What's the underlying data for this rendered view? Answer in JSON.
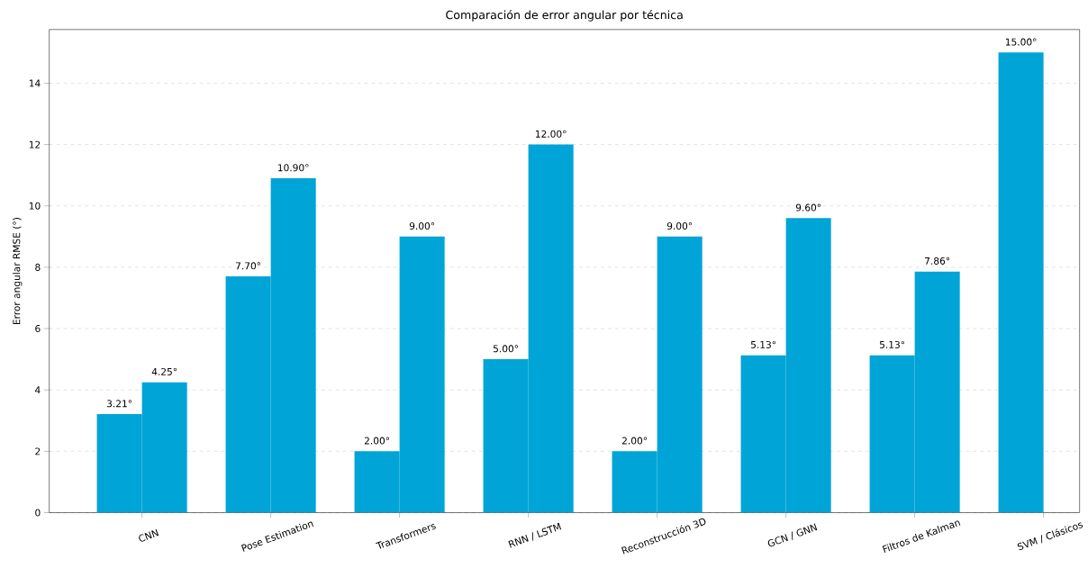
{
  "chart_data": {
    "type": "bar",
    "title": "Comparación de error angular por técnica",
    "ylabel": "Error angular RMSE (°)",
    "categories": [
      "CNN",
      "Pose Estimation",
      "Transformers",
      "RNN / LSTM",
      "Reconstrucción 3D",
      "GCN / GNN",
      "Filtros de Kalman",
      "SVM / Clásicos"
    ],
    "series": [
      {
        "color": "#00a4d6",
        "values": [
          3.21,
          7.7,
          2.0,
          5.0,
          2.0,
          5.13,
          5.13,
          15.0
        ],
        "value_labels": [
          "3.21°",
          "7.70°",
          "2.00°",
          "5.00°",
          "2.00°",
          "5.13°",
          "5.13°",
          "15.00°"
        ]
      },
      {
        "color": "#00a4d6",
        "values": [
          4.25,
          10.9,
          9.0,
          12.0,
          9.0,
          9.6,
          7.86,
          null
        ],
        "value_labels": [
          "4.25°",
          "10.90°",
          "9.00°",
          "12.00°",
          "9.00°",
          "9.60°",
          "7.86°",
          null
        ]
      }
    ],
    "ylim": [
      0,
      15.75
    ],
    "yticks": [
      0,
      2,
      4,
      6,
      8,
      10,
      12,
      14
    ],
    "grid": "y"
  }
}
